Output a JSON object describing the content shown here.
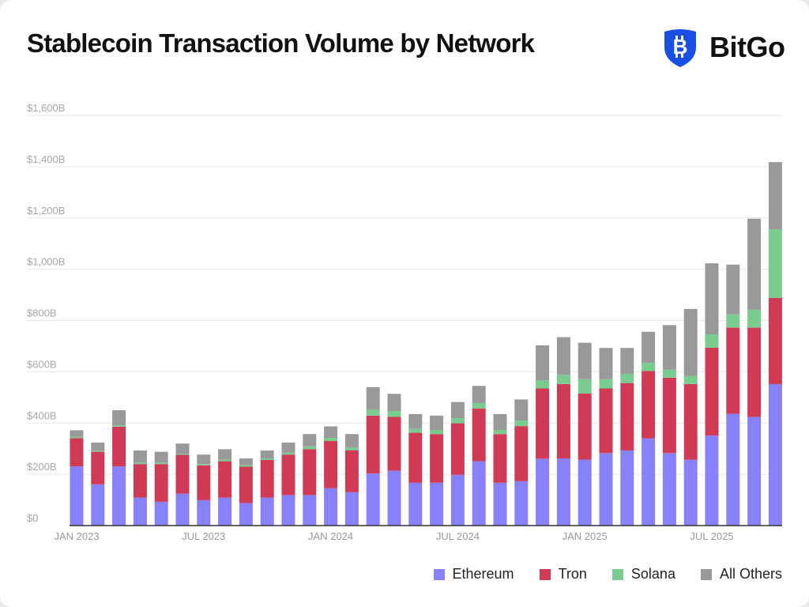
{
  "title": "Stablecoin Transaction Volume by Network",
  "logo": {
    "text": "BitGo",
    "icon": "bitgo-shield-bitcoin-icon",
    "color": "#1a4fe6"
  },
  "chart_data": {
    "type": "bar",
    "stacked": true,
    "title": "Stablecoin Transaction Volume by Network",
    "xlabel": "",
    "ylabel": "",
    "ylim": [
      0,
      1600
    ],
    "grid": true,
    "legend_position": "bottom-right",
    "yticks": [
      0,
      200,
      400,
      600,
      800,
      1000,
      1200,
      1400,
      1600
    ],
    "ytick_labels": [
      "$0",
      "$200B",
      "$400B",
      "$600B",
      "$800B",
      "$1,000B",
      "$1,200B",
      "$1,400B",
      "$1,600B"
    ],
    "xtick_labels": [
      {
        "index": 0,
        "label": "JAN 2023"
      },
      {
        "index": 6,
        "label": "JUL 2023"
      },
      {
        "index": 12,
        "label": "JAN 2024"
      },
      {
        "index": 18,
        "label": "JUL 2024"
      },
      {
        "index": 24,
        "label": "JAN 2025"
      },
      {
        "index": 30,
        "label": "JUL 2025"
      }
    ],
    "categories": [
      "2023-01",
      "2023-02",
      "2023-03",
      "2023-04",
      "2023-05",
      "2023-06",
      "2023-07",
      "2023-08",
      "2023-09",
      "2023-10",
      "2023-11",
      "2023-12",
      "2024-01",
      "2024-02",
      "2024-03",
      "2024-04",
      "2024-05",
      "2024-06",
      "2024-07",
      "2024-08",
      "2024-09",
      "2024-10",
      "2024-11",
      "2024-12",
      "2025-01",
      "2025-02",
      "2025-03",
      "2025-04",
      "2025-05",
      "2025-06",
      "2025-07",
      "2025-08",
      "2025-09",
      "2025-10"
    ],
    "series": [
      {
        "name": "Ethereum",
        "color": "#8781fb",
        "values": [
          231,
          161,
          231,
          109,
          93,
          124,
          99,
          109,
          88,
          109,
          119,
          119,
          146,
          130,
          203,
          214,
          167,
          167,
          198,
          251,
          167,
          173,
          261,
          262,
          257,
          283,
          293,
          340,
          283,
          257,
          351,
          436,
          424,
          552
        ]
      },
      {
        "name": "Tron",
        "color": "#d13a55",
        "values": [
          110,
          127,
          155,
          131,
          147,
          152,
          136,
          142,
          142,
          147,
          158,
          179,
          184,
          164,
          226,
          210,
          195,
          190,
          201,
          206,
          190,
          215,
          274,
          290,
          258,
          252,
          263,
          263,
          294,
          295,
          343,
          336,
          348,
          336
        ]
      },
      {
        "name": "Solana",
        "color": "#79cc8e",
        "values": [
          5,
          4,
          5,
          6,
          6,
          4,
          5,
          6,
          5,
          6,
          7,
          11,
          12,
          10,
          23,
          23,
          15,
          16,
          20,
          21,
          16,
          22,
          32,
          36,
          56,
          36,
          36,
          32,
          31,
          31,
          52,
          52,
          70,
          268
        ]
      },
      {
        "name": "All Others",
        "color": "#999999",
        "values": [
          26,
          32,
          59,
          47,
          42,
          40,
          37,
          41,
          27,
          31,
          40,
          48,
          45,
          53,
          88,
          67,
          58,
          56,
          63,
          67,
          62,
          82,
          136,
          147,
          142,
          122,
          101,
          121,
          174,
          262,
          277,
          194,
          355,
          262
        ]
      }
    ]
  }
}
